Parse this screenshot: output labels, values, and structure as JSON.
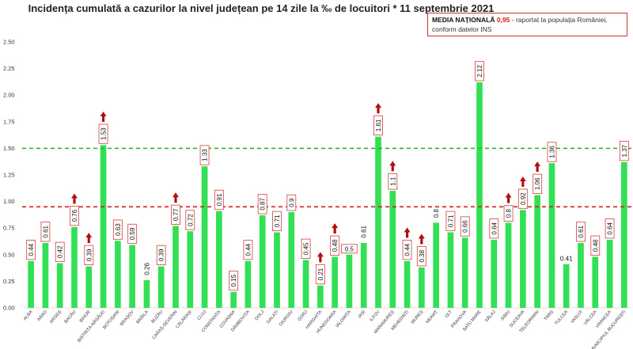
{
  "chart_data": {
    "type": "bar",
    "title": "Incidența cumulată a cazurilor la nivel județean pe 14 zile la ‰ de locuitori * 11 septembrie 2021",
    "xlabel": "",
    "ylabel": "",
    "ylim": [
      0,
      2.5
    ],
    "yticks": [
      "0.00",
      "0.25",
      "0.50",
      "0.75",
      "1.00",
      "1.25",
      "1.50",
      "1.75",
      "2.00",
      "2.25",
      "2.50"
    ],
    "categories": [
      "ALBA",
      "ARAD",
      "ARGEȘ",
      "BACĂU",
      "BIHOR",
      "BISTRIȚA-NĂSĂUD",
      "BOTOȘANI",
      "BRAȘOV",
      "BRĂILA",
      "BUZĂU",
      "CARAȘ-SEVERIN",
      "CĂLĂRAȘI",
      "CLUJ",
      "CONSTANȚA",
      "COVASNA",
      "DÂMBOVIȚA",
      "DOLJ",
      "GALAȚI",
      "GIURGIU",
      "GORJ",
      "HARGHITA",
      "HUNEDOARA",
      "IALOMIȚA",
      "IAȘI",
      "ILFOV",
      "MARAMUREȘ",
      "MEHEDINȚI",
      "MUREȘ",
      "NEAMȚ",
      "OLT",
      "PRAHOVA",
      "SATU MARE",
      "SĂLAJ",
      "SIBIU",
      "SUCEAVA",
      "TELEORMAN",
      "TIMIȘ",
      "TULCEA",
      "VASLUI",
      "VÂLCEA",
      "VRANCEA",
      "MUNICIPIUL BUCUREȘTI"
    ],
    "values": [
      0.44,
      0.61,
      0.42,
      0.76,
      0.39,
      1.53,
      0.63,
      0.59,
      0.26,
      0.39,
      0.77,
      0.72,
      1.33,
      0.91,
      0.15,
      0.44,
      0.87,
      0.71,
      0.9,
      0.45,
      0.21,
      0.48,
      0.5,
      0.61,
      1.61,
      1.1,
      0.44,
      0.38,
      0.8,
      0.71,
      0.66,
      2.12,
      0.64,
      0.8,
      0.92,
      1.06,
      1.36,
      0.41,
      0.61,
      0.48,
      0.64,
      1.37
    ],
    "labels": [
      "0.44",
      "0.61",
      "0.42",
      "0.76",
      "0.39",
      "1.53",
      "0.63",
      "0.59",
      "0.26",
      "0.39",
      "0.77",
      "0.72",
      "1.33",
      "0.91",
      "0.15",
      "0.44",
      "0.87",
      "0.71",
      "0.9",
      "0.45",
      "0.21",
      "0.48",
      "0.5",
      "0.61",
      "1.61",
      "1.1",
      "0.44",
      "0.38",
      "0.8",
      "0.71",
      "0.66",
      "2.12",
      "0.64",
      "0.8",
      "0.92",
      "1.06",
      "1.36",
      "0.41",
      "0.61",
      "0.48",
      "0.64",
      "1.37"
    ],
    "boxed": [
      true,
      true,
      true,
      true,
      true,
      true,
      true,
      true,
      false,
      true,
      true,
      true,
      true,
      true,
      true,
      true,
      true,
      true,
      true,
      true,
      true,
      true,
      true,
      false,
      true,
      true,
      true,
      true,
      false,
      true,
      true,
      true,
      true,
      true,
      true,
      true,
      true,
      false,
      true,
      true,
      true,
      true
    ],
    "rotated": [
      true,
      true,
      true,
      true,
      true,
      true,
      true,
      true,
      true,
      true,
      true,
      true,
      true,
      true,
      true,
      true,
      true,
      true,
      true,
      true,
      true,
      true,
      false,
      true,
      true,
      true,
      true,
      true,
      true,
      true,
      true,
      true,
      true,
      true,
      true,
      true,
      true,
      false,
      true,
      true,
      true,
      true
    ],
    "arrows_up": [
      false,
      false,
      false,
      true,
      true,
      true,
      false,
      false,
      false,
      false,
      true,
      false,
      false,
      false,
      false,
      false,
      false,
      false,
      false,
      false,
      true,
      true,
      false,
      false,
      true,
      true,
      true,
      true,
      false,
      false,
      false,
      false,
      false,
      true,
      true,
      true,
      false,
      false,
      false,
      false,
      false,
      false
    ],
    "reference_lines": [
      {
        "name": "threshold-1.5",
        "value": 1.5,
        "color": "#2bb52b",
        "style": "dashed"
      },
      {
        "name": "national-average",
        "value": 0.95,
        "color": "#d21f1f",
        "style": "dashed"
      }
    ],
    "colors": {
      "bar": "#33e055",
      "box": "#d9534f",
      "arrow": "#b01010"
    }
  },
  "media_nationala": {
    "label": "MEDIA NAȚIONALĂ",
    "value": "0,95",
    "note": " - raportat la populația României, conform datelor INS"
  }
}
